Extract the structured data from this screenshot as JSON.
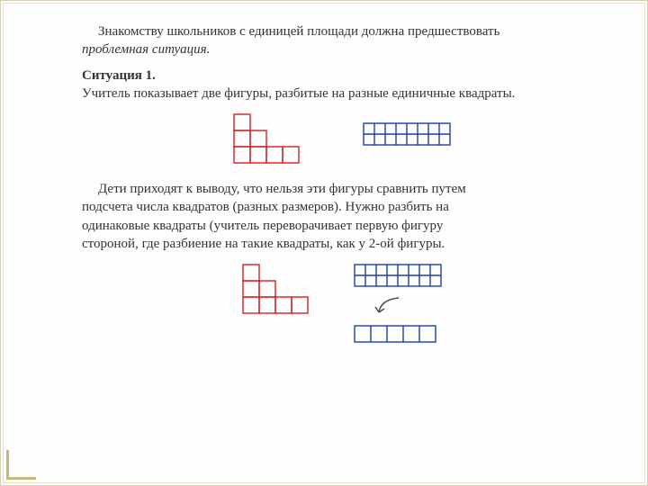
{
  "text": {
    "intro_line1": "Знакомству школьников с единицей площади должна предшествовать",
    "intro_line2_italic": "проблемная ситуация.",
    "situation_title": "Ситуация 1.",
    "situation_desc": "Учитель показывает две фигуры, разбитые на разные единичные квадраты.",
    "conclusion_1": "Дети приходят к выводу, что нельзя эти фигуры сравнить путем",
    "conclusion_2": "подсчета числа квадратов (разных размеров). Нужно разбить на",
    "conclusion_3": "одинаковые квадраты (учитель переворачивает первую фигуру",
    "conclusion_4": "стороной, где разбиение на такие квадраты, как у 2-ой фигуры."
  },
  "style": {
    "font_size_pt": 15,
    "text_color": "#333333",
    "red_stroke": "#d62020",
    "blue_stroke": "#1a3fb0",
    "grid_stroke_width": 1.4,
    "arrow_stroke": "#4a4a4a"
  },
  "figures": {
    "top_red_step": {
      "unit": 18,
      "color": "#d62020",
      "cells": [
        [
          0,
          0
        ],
        [
          0,
          1
        ],
        [
          1,
          1
        ],
        [
          0,
          2
        ],
        [
          1,
          2
        ],
        [
          2,
          2
        ],
        [
          3,
          2
        ]
      ],
      "cols": 4,
      "rows": 3
    },
    "top_blue_rect": {
      "unit": 12,
      "color": "#1a3fb0",
      "cols": 8,
      "rows": 2
    },
    "bottom_red_step": {
      "unit": 18,
      "color": "#d62020",
      "cells": [
        [
          0,
          0
        ],
        [
          0,
          1
        ],
        [
          1,
          1
        ],
        [
          0,
          2
        ],
        [
          1,
          2
        ],
        [
          2,
          2
        ],
        [
          3,
          2
        ]
      ],
      "cols": 4,
      "rows": 3
    },
    "bottom_blue_rect": {
      "unit": 12,
      "color": "#1a3fb0",
      "cols": 8,
      "rows": 2
    },
    "bottom_small_rect": {
      "unit": 18,
      "color": "#1a3fb0",
      "cols": 5,
      "rows": 1
    }
  }
}
